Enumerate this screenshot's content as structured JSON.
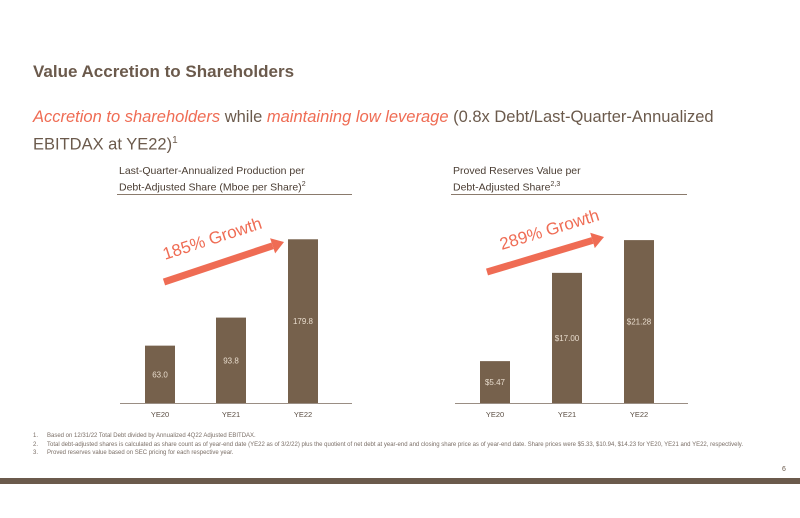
{
  "title": "Value Accretion to Shareholders",
  "subtitle": {
    "hl1": "Accretion to shareholders",
    "mid": " while ",
    "hl2": "maintaining low leverage",
    "rest": " (0.8x Debt/Last-Quarter-Annualized EBITDAX at YE22)",
    "sup": "1"
  },
  "colors": {
    "bar": "#76614c",
    "arrow": "#ef6c54",
    "accent": "#ef6c54",
    "text": "#6b5a4c"
  },
  "chart_data": [
    {
      "type": "bar",
      "title_line1": "Last-Quarter-Annualized Production per",
      "title_line2": "Debt-Adjusted Share (Mboe per Share)",
      "title_sup": "2",
      "categories": [
        "YE20",
        "YE21",
        "YE22"
      ],
      "values": [
        63.0,
        93.8,
        179.8
      ],
      "labels": [
        "63.0",
        "93.8",
        "179.8"
      ],
      "annotation": "185% Growth",
      "ylim": [
        0,
        190
      ]
    },
    {
      "type": "bar",
      "title_line1": "Proved Reserves Value per",
      "title_line2": "Debt-Adjusted Share",
      "title_sup": "2,3",
      "categories": [
        "YE20",
        "YE21",
        "YE22"
      ],
      "values": [
        5.47,
        17.0,
        21.28
      ],
      "labels": [
        "$5.47",
        "$17.00",
        "$21.28"
      ],
      "annotation": "289% Growth",
      "ylim": [
        0,
        22.6
      ]
    }
  ],
  "footnotes": [
    {
      "num": "1.",
      "text": "Based on 12/31/22 Total Debt divided by Annualized 4Q22 Adjusted EBITDAX."
    },
    {
      "num": "2.",
      "text": "Total debt-adjusted shares is calculated as share count as of year-end date (YE22 as of 3/2/22) plus the quotient of net debt at year-end and closing share price as of year-end date. Share prices were $5.33, $10.94, $14.23 for YE20, YE21 and YE22, respectively."
    },
    {
      "num": "3.",
      "text": "Proved reserves value based on SEC pricing for each respective year."
    }
  ],
  "page_number": "6"
}
